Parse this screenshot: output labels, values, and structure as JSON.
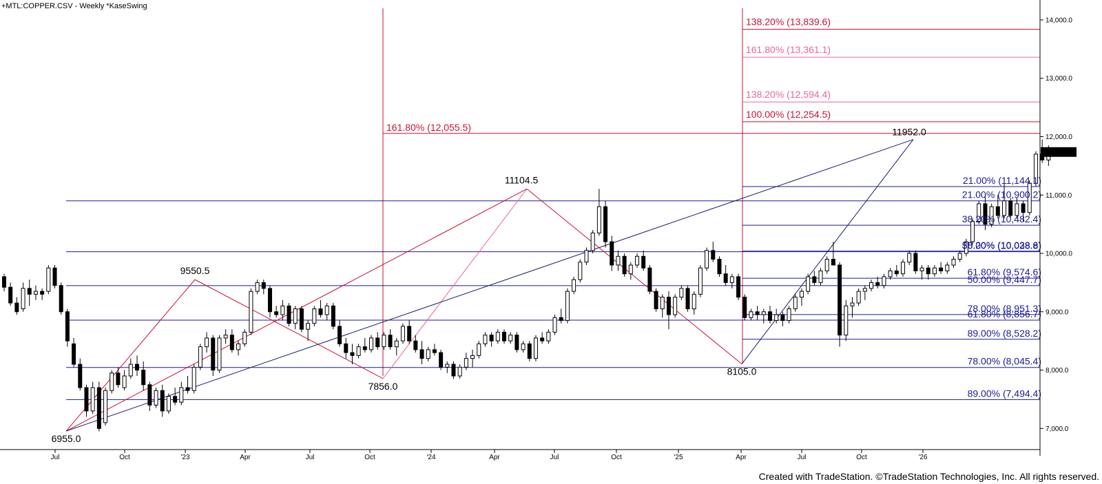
{
  "title": "+MTL:COPPER.CSV - Weekly  *KaseSwing",
  "credit": "Created with TradeStation. ©TradeStation Technologies, Inc. All rights reserved.",
  "chart_data": {
    "type": "candlestick",
    "symbol": "+MTL:COPPER.CSV",
    "timeframe": "Weekly",
    "study": "*KaseSwing",
    "ylim": [
      6600,
      14300
    ],
    "y_ticks": [
      {
        "value": 7000,
        "label": "7,000.0"
      },
      {
        "value": 8000,
        "label": "8,000.0"
      },
      {
        "value": 9000,
        "label": "9,000.0"
      },
      {
        "value": 10000,
        "label": "10,000.0"
      },
      {
        "value": 11000,
        "label": "11,000.0"
      },
      {
        "value": 12000,
        "label": "12,000.0"
      },
      {
        "value": 13000,
        "label": "13,000.0"
      },
      {
        "value": 14000,
        "label": "14,000.0"
      }
    ],
    "x_ticks": [
      "Jul",
      "Oct",
      "'23",
      "Apr",
      "Jul",
      "Oct",
      "'24",
      "Apr",
      "Jul",
      "Oct",
      "'25",
      "Apr",
      "Jul",
      "Oct",
      "'26"
    ],
    "last_price": {
      "value": 11737.0,
      "label": "11,737.0",
      "color": "#000000"
    },
    "swing_points": [
      {
        "label": "6955.0",
        "value": 6955.0
      },
      {
        "label": "9550.5",
        "value": 9550.5
      },
      {
        "label": "7856.0",
        "value": 7856.0
      },
      {
        "label": "11104.5",
        "value": 11104.5
      },
      {
        "label": "8105.0",
        "value": 8105.0
      },
      {
        "label": "11952.0",
        "value": 11952.0
      }
    ],
    "fib_levels": [
      {
        "label": "138.20% (13,839.6)",
        "value": 13839.6,
        "color": "#cc1133",
        "group": "upper"
      },
      {
        "label": "161.80% (13,361.1)",
        "value": 13361.1,
        "color": "#e8669a",
        "group": "upper"
      },
      {
        "label": "138.20% (12,594.4)",
        "value": 12594.4,
        "color": "#e8669a",
        "group": "upper"
      },
      {
        "label": "100.00% (12,254.5)",
        "value": 12254.5,
        "color": "#cc1133",
        "group": "upper"
      },
      {
        "label": "161.80% (12,055.5)",
        "value": 12055.5,
        "color": "#cc1133",
        "group": "mid"
      },
      {
        "label": "21.00% (11,144.1)",
        "value": 11144.1,
        "color": "#1a1a99",
        "group": "right"
      },
      {
        "label": "21.00% (10,900.2)",
        "value": 10900.2,
        "color": "#1a1a99",
        "group": "right"
      },
      {
        "label": "38.20% (10,482.4)",
        "value": 10482.4,
        "color": "#1a1a99",
        "group": "right"
      },
      {
        "label": "50.00% (10,028.8)",
        "value": 10028.8,
        "color": "#1a1a99",
        "group": "right"
      },
      {
        "label": "38.20% (10,038.6)",
        "value": 10038.6,
        "color": "#1a1a99",
        "group": "right"
      },
      {
        "label": "61.80% (9,574.6)",
        "value": 9574.6,
        "color": "#1a1a99",
        "group": "right"
      },
      {
        "label": "50.00% (9,447.7)",
        "value": 9447.7,
        "color": "#1a1a99",
        "group": "right"
      },
      {
        "label": "78.00% (8,951.3)",
        "value": 8951.3,
        "color": "#1a1a99",
        "group": "right"
      },
      {
        "label": "61.80% (8,856.7)",
        "value": 8856.7,
        "color": "#1a1a99",
        "group": "right"
      },
      {
        "label": "89.00% (8,528.2)",
        "value": 8528.2,
        "color": "#1a1a99",
        "group": "right"
      },
      {
        "label": "78.00% (8,045.4)",
        "value": 8045.4,
        "color": "#1a1a99",
        "group": "right"
      },
      {
        "label": "89.00% (7,494.4)",
        "value": 7494.4,
        "color": "#1a1a99",
        "group": "right"
      }
    ],
    "candles": [
      [
        9600,
        9650,
        9350,
        9420
      ],
      [
        9420,
        9500,
        9100,
        9150
      ],
      [
        9150,
        9250,
        8950,
        9000
      ],
      [
        9050,
        9500,
        9000,
        9400
      ],
      [
        9400,
        9550,
        9100,
        9300
      ],
      [
        9300,
        9450,
        9200,
        9350
      ],
      [
        9350,
        9400,
        9200,
        9300
      ],
      [
        9350,
        9800,
        9300,
        9750
      ],
      [
        9750,
        9800,
        9400,
        9450
      ],
      [
        9450,
        9500,
        8950,
        9000
      ],
      [
        9000,
        9050,
        8400,
        8500
      ],
      [
        8450,
        8550,
        8050,
        8100
      ],
      [
        8100,
        8200,
        7650,
        7700
      ],
      [
        7700,
        7750,
        7200,
        7300
      ],
      [
        7300,
        7800,
        7250,
        7700
      ],
      [
        7700,
        7800,
        6950,
        7000
      ],
      [
        7100,
        7700,
        7050,
        7650
      ],
      [
        7650,
        8000,
        7600,
        7950
      ],
      [
        7950,
        8050,
        7700,
        7750
      ],
      [
        7700,
        8000,
        7650,
        7900
      ],
      [
        7900,
        8200,
        7850,
        8100
      ],
      [
        8100,
        8250,
        7900,
        8000
      ],
      [
        8000,
        8150,
        7650,
        7750
      ],
      [
        7750,
        7800,
        7300,
        7400
      ],
      [
        7400,
        7700,
        7350,
        7650
      ],
      [
        7650,
        7750,
        7200,
        7300
      ],
      [
        7300,
        7600,
        7250,
        7550
      ],
      [
        7550,
        7700,
        7400,
        7450
      ],
      [
        7450,
        7800,
        7400,
        7700
      ],
      [
        7700,
        7900,
        7600,
        7650
      ],
      [
        7650,
        8100,
        7600,
        8050
      ],
      [
        8050,
        8450,
        8000,
        8400
      ],
      [
        8400,
        8650,
        8300,
        8550
      ],
      [
        8550,
        8600,
        7900,
        8000
      ],
      [
        8000,
        8600,
        7950,
        8550
      ],
      [
        8550,
        8700,
        8450,
        8600
      ],
      [
        8600,
        8700,
        8300,
        8350
      ],
      [
        8350,
        8500,
        8250,
        8450
      ],
      [
        8450,
        8700,
        8400,
        8650
      ],
      [
        8650,
        9400,
        8600,
        9350
      ],
      [
        9350,
        9550,
        9300,
        9500
      ],
      [
        9500,
        9550,
        9300,
        9400
      ],
      [
        9400,
        9450,
        8900,
        9000
      ],
      [
        9000,
        9100,
        8900,
        8950
      ],
      [
        8950,
        9200,
        8850,
        9100
      ],
      [
        9100,
        9150,
        8750,
        8800
      ],
      [
        8800,
        9100,
        8700,
        9050
      ],
      [
        9050,
        9100,
        8650,
        8700
      ],
      [
        8700,
        8850,
        8500,
        8800
      ],
      [
        8800,
        9100,
        8750,
        9050
      ],
      [
        9050,
        9200,
        8900,
        8950
      ],
      [
        8950,
        9150,
        8850,
        9100
      ],
      [
        9100,
        9150,
        8700,
        8750
      ],
      [
        8750,
        8850,
        8400,
        8450
      ],
      [
        8450,
        8550,
        8200,
        8300
      ],
      [
        8300,
        8450,
        8100,
        8250
      ],
      [
        8250,
        8450,
        8200,
        8400
      ],
      [
        8400,
        8550,
        8300,
        8350
      ],
      [
        8350,
        8600,
        8300,
        8550
      ],
      [
        8550,
        8650,
        8350,
        8400
      ],
      [
        8400,
        8650,
        8350,
        8600
      ],
      [
        8600,
        8700,
        8350,
        8400
      ],
      [
        8400,
        8550,
        8250,
        8500
      ],
      [
        8500,
        8800,
        8450,
        8750
      ],
      [
        8750,
        8850,
        8450,
        8500
      ],
      [
        8500,
        8600,
        8300,
        8350
      ],
      [
        8350,
        8500,
        8100,
        8200
      ],
      [
        8200,
        8400,
        8150,
        8350
      ],
      [
        8350,
        8450,
        8250,
        8300
      ],
      [
        8300,
        8350,
        8000,
        8050
      ],
      [
        8050,
        8150,
        7950,
        8100
      ],
      [
        8100,
        8150,
        7850,
        7900
      ],
      [
        7900,
        8100,
        7856,
        8050
      ],
      [
        8050,
        8300,
        8000,
        8200
      ],
      [
        8200,
        8350,
        8050,
        8250
      ],
      [
        8250,
        8500,
        8200,
        8450
      ],
      [
        8450,
        8650,
        8400,
        8600
      ],
      [
        8600,
        8650,
        8400,
        8500
      ],
      [
        8500,
        8700,
        8450,
        8650
      ],
      [
        8650,
        8700,
        8450,
        8500
      ],
      [
        8500,
        8650,
        8450,
        8600
      ],
      [
        8600,
        8650,
        8300,
        8350
      ],
      [
        8350,
        8500,
        8300,
        8450
      ],
      [
        8450,
        8500,
        8150,
        8200
      ],
      [
        8200,
        8600,
        8150,
        8550
      ],
      [
        8550,
        8650,
        8450,
        8500
      ],
      [
        8500,
        8700,
        8450,
        8650
      ],
      [
        8650,
        8950,
        8600,
        8900
      ],
      [
        8900,
        9050,
        8800,
        8850
      ],
      [
        8850,
        9400,
        8800,
        9350
      ],
      [
        9350,
        9600,
        9300,
        9550
      ],
      [
        9550,
        9900,
        9500,
        9850
      ],
      [
        9850,
        10100,
        9800,
        10050
      ],
      [
        10050,
        10400,
        10000,
        10350
      ],
      [
        10350,
        11104.5,
        10300,
        10800
      ],
      [
        10800,
        10900,
        10100,
        10200
      ],
      [
        10200,
        10300,
        9700,
        9800
      ],
      [
        9800,
        10050,
        9700,
        9950
      ],
      [
        9950,
        10000,
        9600,
        9650
      ],
      [
        9650,
        9850,
        9550,
        9800
      ],
      [
        9800,
        10000,
        9750,
        9950
      ],
      [
        9950,
        10050,
        9700,
        9750
      ],
      [
        9750,
        9800,
        9300,
        9350
      ],
      [
        9350,
        9400,
        9000,
        9050
      ],
      [
        9050,
        9300,
        8900,
        9250
      ],
      [
        9250,
        9350,
        8700,
        8950
      ],
      [
        8950,
        9300,
        8900,
        9250
      ],
      [
        9250,
        9450,
        9200,
        9400
      ],
      [
        9400,
        9450,
        9000,
        9050
      ],
      [
        9050,
        9350,
        8950,
        9300
      ],
      [
        9300,
        9800,
        9250,
        9750
      ],
      [
        9750,
        10100,
        9700,
        10050
      ],
      [
        10050,
        10200,
        9850,
        9900
      ],
      [
        9900,
        9950,
        9600,
        9650
      ],
      [
        9650,
        9800,
        9450,
        9500
      ],
      [
        9500,
        9650,
        9400,
        9600
      ],
      [
        9600,
        9650,
        9200,
        9250
      ],
      [
        9250,
        9300,
        8850,
        8900
      ],
      [
        8900,
        9050,
        8850,
        9000
      ],
      [
        9000,
        9100,
        8850,
        8950
      ],
      [
        8950,
        9050,
        8800,
        9000
      ],
      [
        9000,
        9100,
        8800,
        8850
      ],
      [
        8850,
        9050,
        8800,
        8950
      ],
      [
        8950,
        9000,
        8750,
        8850
      ],
      [
        8850,
        9100,
        8800,
        9050
      ],
      [
        9050,
        9300,
        9000,
        9250
      ],
      [
        9250,
        9400,
        9100,
        9350
      ],
      [
        9350,
        9650,
        9300,
        9600
      ],
      [
        9600,
        9700,
        9450,
        9500
      ],
      [
        9500,
        9750,
        9450,
        9700
      ],
      [
        9700,
        9950,
        9650,
        9900
      ],
      [
        9900,
        10200,
        9850,
        9800
      ],
      [
        9800,
        9850,
        8400,
        8600
      ],
      [
        8600,
        9200,
        8500,
        9100
      ],
      [
        9100,
        9250,
        8900,
        9150
      ],
      [
        9150,
        9400,
        9100,
        9350
      ],
      [
        9350,
        9450,
        9200,
        9400
      ],
      [
        9400,
        9550,
        9350,
        9500
      ],
      [
        9500,
        9600,
        9400,
        9450
      ],
      [
        9450,
        9650,
        9400,
        9600
      ],
      [
        9600,
        9750,
        9550,
        9700
      ],
      [
        9700,
        9800,
        9600,
        9650
      ],
      [
        9650,
        9900,
        9600,
        9850
      ],
      [
        9850,
        10050,
        9800,
        10000
      ],
      [
        10000,
        10050,
        9650,
        9700
      ],
      [
        9700,
        9800,
        9550,
        9750
      ],
      [
        9750,
        9800,
        9550,
        9650
      ],
      [
        9650,
        9800,
        9600,
        9750
      ],
      [
        9750,
        9850,
        9650,
        9700
      ],
      [
        9700,
        9850,
        9650,
        9800
      ],
      [
        9800,
        9950,
        9750,
        9900
      ],
      [
        9900,
        10050,
        9850,
        10000
      ],
      [
        10000,
        10250,
        9950,
        10200
      ],
      [
        10200,
        10600,
        10150,
        10550
      ],
      [
        10550,
        10900,
        10500,
        10850
      ],
      [
        10850,
        11000,
        10400,
        10500
      ],
      [
        10500,
        10850,
        10450,
        10800
      ],
      [
        10800,
        11000,
        10600,
        10650
      ],
      [
        10650,
        11200,
        10600,
        10900
      ],
      [
        10900,
        10950,
        10600,
        10650
      ],
      [
        10650,
        10950,
        10600,
        10850
      ],
      [
        10850,
        10900,
        10550,
        10700
      ],
      [
        10700,
        11250,
        10650,
        11200
      ],
      [
        11200,
        11750,
        11150,
        11700
      ],
      [
        11700,
        11952,
        11550,
        11600
      ],
      [
        11600,
        11850,
        11500,
        11737
      ]
    ]
  }
}
